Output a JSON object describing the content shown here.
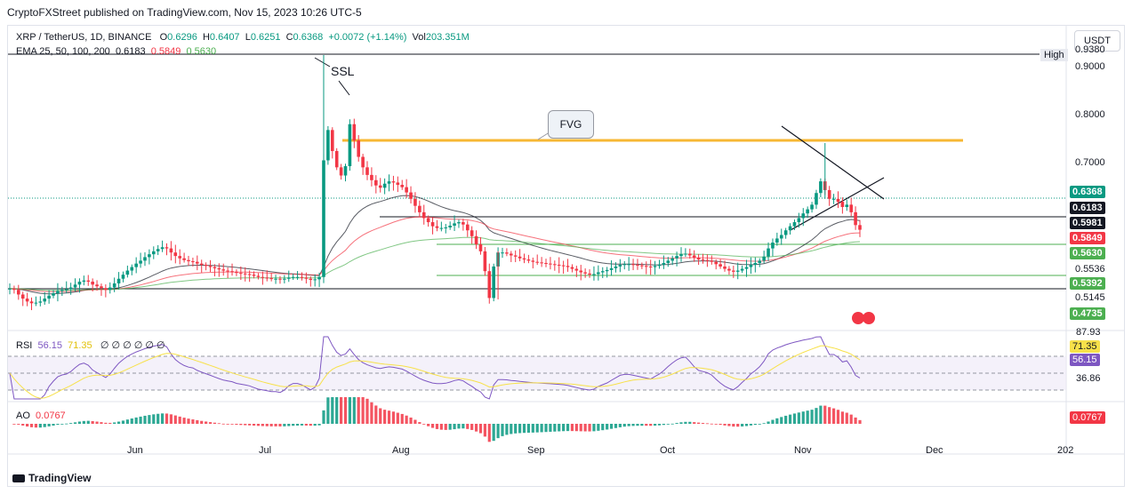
{
  "publish_line": "CryptoFXStreet published on TradingView.com, Nov 15, 2023 10:26 UTC-5",
  "currency_button": "USDT",
  "legend": {
    "symbol": "XRP / TetherUS, 1D, BINANCE",
    "o_label": "O",
    "o": "0.6296",
    "h_label": "H",
    "h": "0.6407",
    "l_label": "L",
    "l": "0.6251",
    "c_label": "C",
    "c": "0.6368",
    "change": "+0.0072 (+1.14%)",
    "vol_label": "Vol",
    "vol": "203.351M",
    "ema_label": "EMA 25, 50, 100, 200",
    "ema_values": [
      "0.6183",
      "0.5849",
      "0.5630"
    ]
  },
  "rsi_legend": {
    "label": "RSI",
    "v1": "56.15",
    "v2": "71.35",
    "rest": "∅ ∅ ∅ ∅ ∅ ∅"
  },
  "ao_legend": {
    "label": "AO",
    "v": "0.0767"
  },
  "annotations": {
    "ssl": "SSL",
    "fvg": "FVG",
    "high": "High"
  },
  "price_axis": {
    "plain": [
      "0.9380",
      "0.9000",
      "0.8000",
      "0.7000",
      "0.5536",
      "0.5145"
    ],
    "tags": [
      {
        "text": "0.6368",
        "color": "#089981"
      },
      {
        "text": "0.6183",
        "color": "#131722"
      },
      {
        "text": "0.5981",
        "color": "#131722"
      },
      {
        "text": "0.5849",
        "color": "#f23645"
      },
      {
        "text": "0.5630",
        "color": "#4caf50"
      },
      {
        "text": "0.5392",
        "color": "#4caf50"
      },
      {
        "text": "0.4735",
        "color": "#4caf50"
      }
    ]
  },
  "rsi_axis": {
    "plain": [
      "87.93",
      "36.86"
    ],
    "tags": [
      {
        "text": "71.35",
        "color": "#f7e14a"
      },
      {
        "text": "56.15",
        "color": "#7e57c2"
      }
    ]
  },
  "ao_axis": {
    "tags": [
      {
        "text": "0.0767",
        "color": "#f23645"
      }
    ]
  },
  "time_axis": [
    "Jun",
    "Jul",
    "Aug",
    "Sep",
    "Oct",
    "Nov",
    "Dec",
    "202"
  ],
  "branding": "TradingView",
  "chart_data": {
    "type": "candlestick",
    "symbol": "XRP / TetherUS",
    "interval": "1D",
    "y_range": [
      0.47,
      0.94
    ],
    "x_labels": [
      "Jun",
      "Jul",
      "Aug",
      "Sep",
      "Oct",
      "Nov",
      "Dec",
      "202"
    ],
    "close_series_approx": [
      0.536,
      0.534,
      0.526,
      0.519,
      0.514,
      0.511,
      0.512,
      0.514,
      0.519,
      0.524,
      0.528,
      0.532,
      0.534,
      0.535,
      0.538,
      0.543,
      0.548,
      0.55,
      0.548,
      0.543,
      0.54,
      0.537,
      0.534,
      0.538,
      0.545,
      0.553,
      0.56,
      0.567,
      0.573,
      0.579,
      0.584,
      0.59,
      0.595,
      0.6,
      0.604,
      0.607,
      0.605,
      0.598,
      0.592,
      0.588,
      0.585,
      0.583,
      0.582,
      0.579,
      0.577,
      0.575,
      0.573,
      0.571,
      0.569,
      0.567,
      0.566,
      0.565,
      0.563,
      0.562,
      0.561,
      0.56,
      0.558,
      0.556,
      0.555,
      0.554,
      0.553,
      0.553,
      0.552,
      0.553,
      0.555,
      0.556,
      0.556,
      0.555,
      0.553,
      0.551,
      0.552,
      0.556,
      0.756,
      0.808,
      0.772,
      0.744,
      0.73,
      0.746,
      0.818,
      0.79,
      0.762,
      0.744,
      0.731,
      0.722,
      0.713,
      0.709,
      0.716,
      0.72,
      0.718,
      0.714,
      0.71,
      0.701,
      0.69,
      0.678,
      0.667,
      0.657,
      0.65,
      0.643,
      0.64,
      0.64,
      0.641,
      0.644,
      0.648,
      0.65,
      0.646,
      0.636,
      0.626,
      0.612,
      0.6,
      0.566,
      0.52,
      0.574,
      0.598,
      0.598,
      0.596,
      0.593,
      0.591,
      0.588,
      0.586,
      0.584,
      0.582,
      0.581,
      0.58,
      0.579,
      0.578,
      0.577,
      0.576,
      0.575,
      0.573,
      0.57,
      0.567,
      0.564,
      0.562,
      0.56,
      0.561,
      0.564,
      0.566,
      0.568,
      0.571,
      0.574,
      0.577,
      0.578,
      0.578,
      0.577,
      0.576,
      0.575,
      0.574,
      0.573,
      0.575,
      0.577,
      0.58,
      0.584,
      0.588,
      0.592,
      0.595,
      0.596,
      0.593,
      0.589,
      0.586,
      0.585,
      0.584,
      0.582,
      0.578,
      0.574,
      0.57,
      0.567,
      0.565,
      0.567,
      0.57,
      0.573,
      0.577,
      0.58,
      0.584,
      0.591,
      0.605,
      0.615,
      0.622,
      0.628,
      0.636,
      0.643,
      0.65,
      0.657,
      0.665,
      0.672,
      0.68,
      0.7,
      0.72,
      0.705,
      0.69,
      0.69,
      0.685,
      0.676,
      0.68,
      0.667,
      0.645,
      0.637
    ],
    "ema_legend": {
      "EMA 25": 0.6183,
      "EMA 50": 0.5849,
      "EMA 100": 0.563
    },
    "horizontal_levels": [
      0.938,
      0.758,
      0.6183,
      0.5981,
      0.5849,
      0.5536,
      0.5392
    ],
    "last_price": 0.6368,
    "rsi": {
      "value": 56.15,
      "signal": 71.35,
      "bands": [
        70,
        50,
        30
      ]
    },
    "ao": {
      "value": 0.0767
    }
  }
}
